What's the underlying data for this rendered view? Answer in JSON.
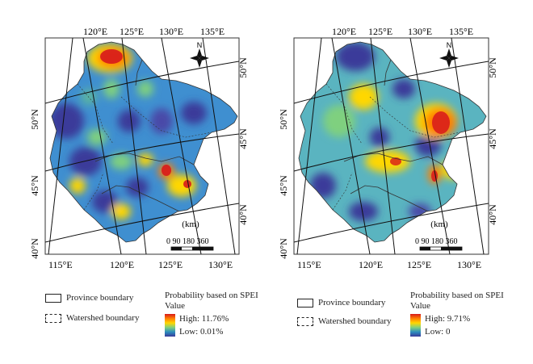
{
  "maps": [
    {
      "top_labels": [
        "120°E",
        "125°E",
        "130°E",
        "135°E"
      ],
      "bottom_labels": [
        "115°E",
        "120°E",
        "125°E",
        "130°E"
      ],
      "left_labels": [
        "50°N",
        "45°N",
        "40°N"
      ],
      "right_labels": [
        "50°N",
        "45°N",
        "40°N"
      ],
      "compass": "N",
      "scale_unit": "(km)",
      "scale_ticks": "0 90 180    360",
      "legend": {
        "province_label": "Province boundary",
        "watershed_label": "Watershed boundary",
        "title": "Probability based on SPEI",
        "value_label": "Value",
        "high": "High: 11.76%",
        "low": "Low: 0.01%"
      }
    },
    {
      "top_labels": [
        "120°E",
        "125°E",
        "130°E",
        "135°E"
      ],
      "bottom_labels": [
        "115°E",
        "120°E",
        "125°E",
        "130°E"
      ],
      "left_labels": [
        "50°N",
        "45°N",
        "40°N"
      ],
      "right_labels": [
        "50°N",
        "45°N",
        "40°N"
      ],
      "compass": "N",
      "scale_unit": "(km)",
      "scale_ticks": "0 90 180    360",
      "legend": {
        "province_label": "Province boundary",
        "watershed_label": "Watershed boundary",
        "title": "Probability based on SPEI",
        "value_label": "Value",
        "high": "High: 9.71%",
        "low": "Low: 0"
      }
    }
  ],
  "colors": {
    "high": "#d7191c",
    "mid": "#ffd700",
    "low": "#3a3a9a",
    "base": "#3f8fd0"
  }
}
